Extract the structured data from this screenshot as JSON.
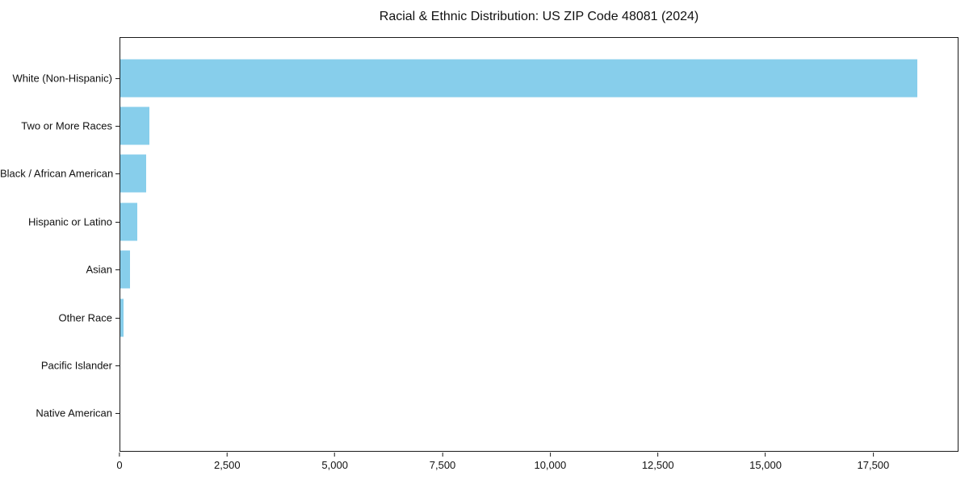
{
  "title": "Racial & Ethnic Distribution: US ZIP Code 48081 (2024)",
  "chart_data": {
    "type": "bar",
    "orientation": "horizontal",
    "title": "Racial & Ethnic Distribution: US ZIP Code 48081 (2024)",
    "categories": [
      "White (Non-Hispanic)",
      "Two or More Races",
      "Black / African American",
      "Hispanic or Latino",
      "Asian",
      "Other Race",
      "Pacific Islander",
      "Native American"
    ],
    "values": [
      18550,
      675,
      610,
      395,
      230,
      80,
      0,
      0
    ],
    "xlabel": "",
    "ylabel": "",
    "xlim": [
      0,
      19480
    ],
    "x_ticks": [
      0,
      2500,
      5000,
      7500,
      10000,
      12500,
      15000,
      17500
    ],
    "x_tick_labels": [
      "0",
      "2,500",
      "5,000",
      "7,500",
      "10,000",
      "12,500",
      "15,000",
      "17,500"
    ],
    "bar_color": "#87CEEB",
    "grid": false,
    "legend_position": "none",
    "sort_order": "descending-top-first"
  }
}
